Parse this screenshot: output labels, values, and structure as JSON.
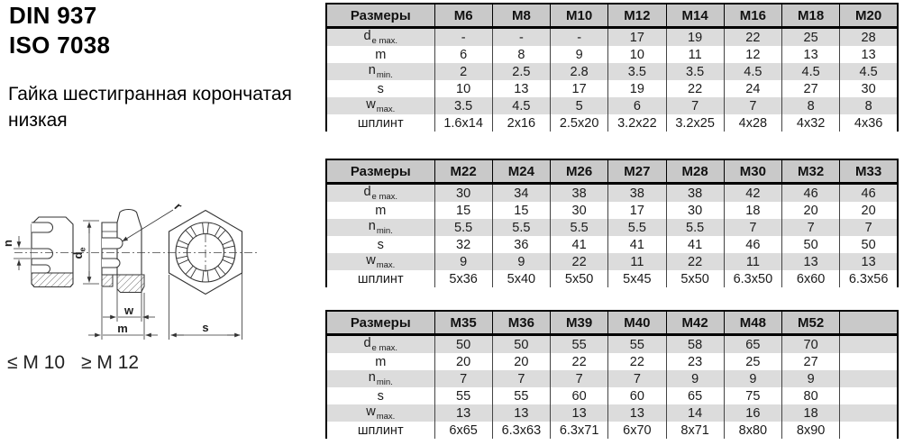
{
  "page": {
    "standard_din": "DIN 937",
    "standard_iso": "ISO 7038",
    "description_line1": "Гайка шестигранная корончатая",
    "description_line2": "низкая",
    "size_note_small": "≤ M 10",
    "size_note_large": "≥ M 12"
  },
  "drawing": {
    "labels": {
      "n": "n",
      "d_main": "d",
      "d_sub": "e",
      "r": "r",
      "w": "w",
      "m": "m",
      "s": "s"
    }
  },
  "tables": [
    {
      "header_label": "Размеры",
      "columns": [
        "M6",
        "M8",
        "M10",
        "M12",
        "M14",
        "M16",
        "M18",
        "M20"
      ],
      "rows": [
        {
          "label": "d",
          "sub": "e max.",
          "values": [
            "-",
            "-",
            "-",
            "17",
            "19",
            "22",
            "25",
            "28"
          ]
        },
        {
          "label": "m",
          "sub": "",
          "values": [
            "6",
            "8",
            "9",
            "10",
            "11",
            "12",
            "13",
            "13"
          ]
        },
        {
          "label": "n",
          "sub": "min.",
          "values": [
            "2",
            "2.5",
            "2.8",
            "3.5",
            "3.5",
            "4.5",
            "4.5",
            "4.5"
          ]
        },
        {
          "label": "s",
          "sub": "",
          "values": [
            "10",
            "13",
            "17",
            "19",
            "22",
            "24",
            "27",
            "30"
          ]
        },
        {
          "label": "w",
          "sub": "max.",
          "values": [
            "3.5",
            "4.5",
            "5",
            "6",
            "7",
            "7",
            "8",
            "8"
          ]
        },
        {
          "label": "шплинт",
          "sub": "",
          "values": [
            "1.6x14",
            "2x16",
            "2.5x20",
            "3.2x22",
            "3.2x25",
            "4x28",
            "4x32",
            "4x36"
          ]
        }
      ]
    },
    {
      "header_label": "Размеры",
      "columns": [
        "M22",
        "M24",
        "M26",
        "M27",
        "M28",
        "M30",
        "M32",
        "M33"
      ],
      "rows": [
        {
          "label": "d",
          "sub": "e max.",
          "values": [
            "30",
            "34",
            "38",
            "38",
            "38",
            "42",
            "46",
            "46"
          ]
        },
        {
          "label": "m",
          "sub": "",
          "values": [
            "15",
            "15",
            "30",
            "17",
            "30",
            "18",
            "20",
            "20"
          ]
        },
        {
          "label": "n",
          "sub": "min.",
          "values": [
            "5.5",
            "5.5",
            "5.5",
            "5.5",
            "5.5",
            "7",
            "7",
            "7"
          ]
        },
        {
          "label": "s",
          "sub": "",
          "values": [
            "32",
            "36",
            "41",
            "41",
            "41",
            "46",
            "50",
            "50"
          ]
        },
        {
          "label": "w",
          "sub": "max.",
          "values": [
            "9",
            "9",
            "22",
            "11",
            "22",
            "11",
            "13",
            "13"
          ]
        },
        {
          "label": "шплинт",
          "sub": "",
          "values": [
            "5x36",
            "5x40",
            "5x50",
            "5x45",
            "5x50",
            "6.3x50",
            "6x60",
            "6.3x56"
          ]
        }
      ]
    },
    {
      "header_label": "Размеры",
      "columns": [
        "M35",
        "M36",
        "M39",
        "M40",
        "M42",
        "M48",
        "M52",
        ""
      ],
      "rows": [
        {
          "label": "d",
          "sub": "e max.",
          "values": [
            "50",
            "50",
            "55",
            "55",
            "58",
            "65",
            "70",
            ""
          ]
        },
        {
          "label": "m",
          "sub": "",
          "values": [
            "20",
            "20",
            "22",
            "22",
            "23",
            "25",
            "27",
            ""
          ]
        },
        {
          "label": "n",
          "sub": "min.",
          "values": [
            "7",
            "7",
            "7",
            "7",
            "9",
            "9",
            "9",
            ""
          ]
        },
        {
          "label": "s",
          "sub": "",
          "values": [
            "55",
            "55",
            "60",
            "60",
            "65",
            "75",
            "80",
            ""
          ]
        },
        {
          "label": "w",
          "sub": "max.",
          "values": [
            "13",
            "13",
            "13",
            "13",
            "14",
            "16",
            "18",
            ""
          ]
        },
        {
          "label": "шплинт",
          "sub": "",
          "values": [
            "6x65",
            "6.3x63",
            "6.3x71",
            "6x70",
            "8x71",
            "8x80",
            "8x90",
            ""
          ]
        }
      ]
    }
  ],
  "colors": {
    "header_bg": "#c9c9c9",
    "row_stripe": "#dcdcdc",
    "border": "#000000",
    "text": "#1b1b1b"
  }
}
